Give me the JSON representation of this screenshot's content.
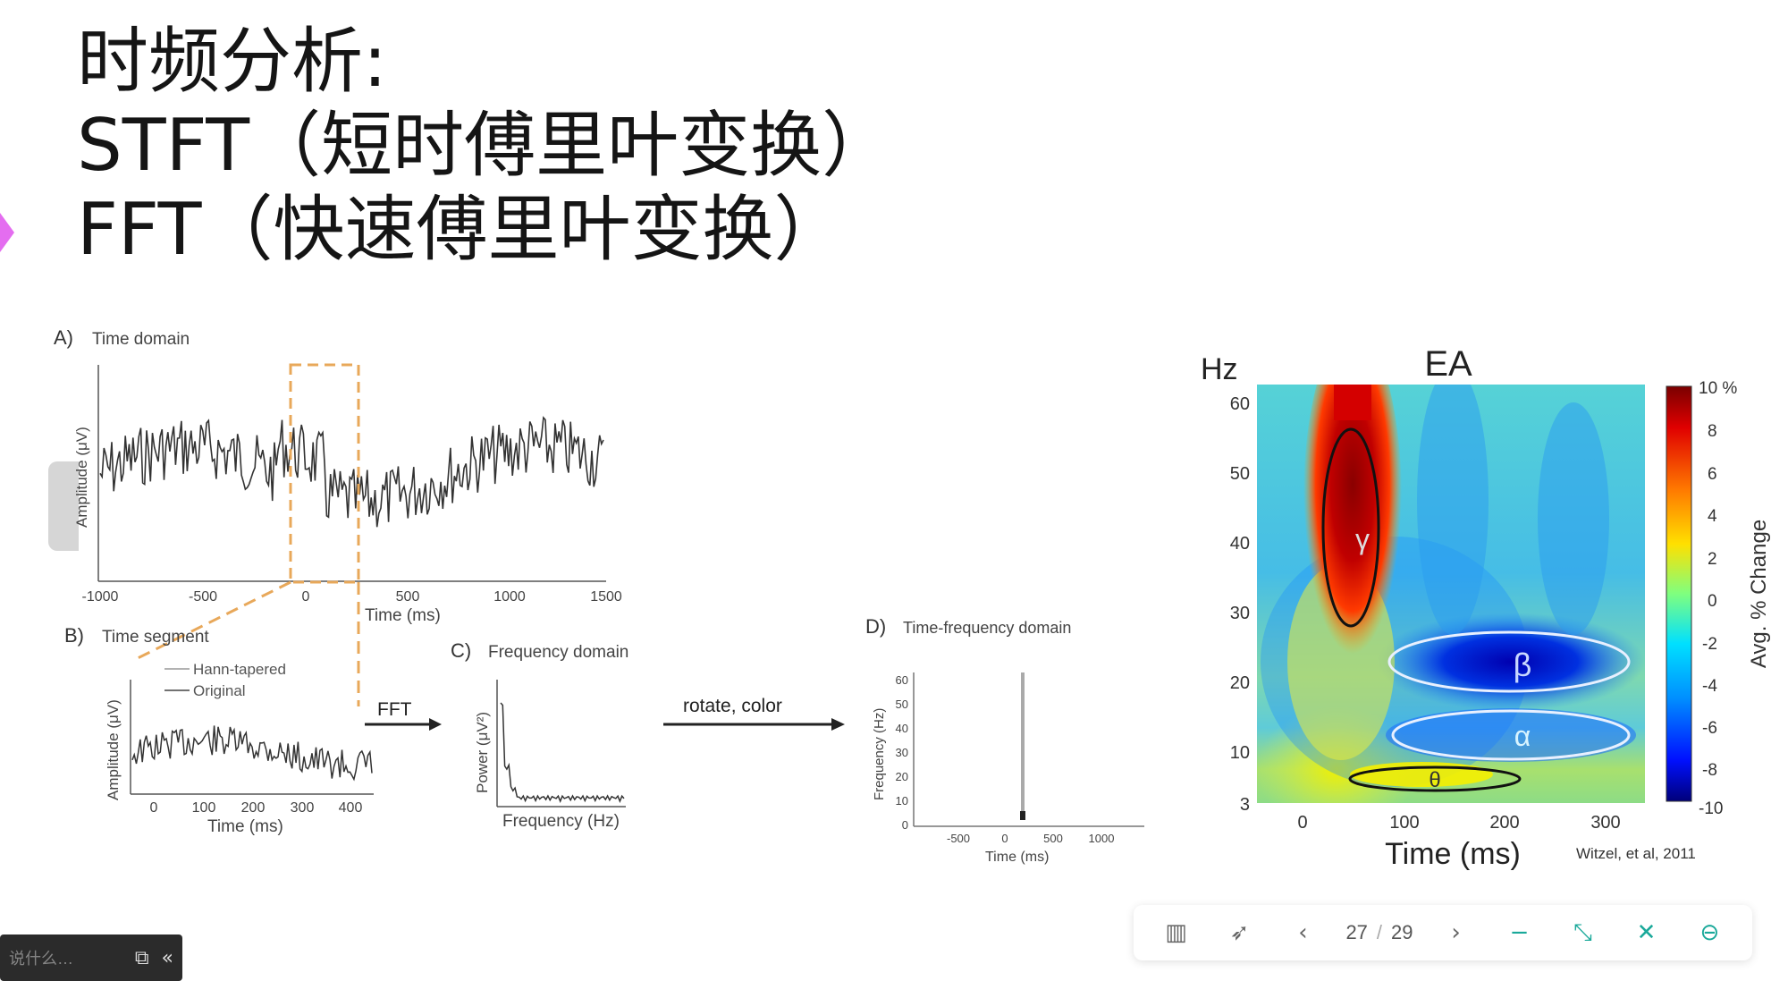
{
  "slide": {
    "title_line1": "时频分析:",
    "title_line2": "STFT（短时傅里叶变换）",
    "title_line3": "FFT（快速傅里叶变换）"
  },
  "figure_left": {
    "panel_a": {
      "letter": "A)",
      "title": "Time domain",
      "ylabel": "Amplitude (μV)",
      "xlabel": "Time (ms)",
      "ticks": [
        "-1000",
        "-500",
        "0",
        "500",
        "1000",
        "1500"
      ]
    },
    "panel_b": {
      "letter": "B)",
      "title": "Time segment",
      "ylabel": "Amplitude (μV)",
      "xlabel": "Time (ms)",
      "legend1": "Hann-tapered",
      "legend2": "Original",
      "ticks": [
        "0",
        "100",
        "200",
        "300",
        "400"
      ]
    },
    "arrow_fft": "FFT",
    "panel_c": {
      "letter": "C)",
      "title": "Frequency domain",
      "ylabel": "Power (μV²)",
      "xlabel": "Frequency (Hz)"
    },
    "arrow_rotate": "rotate, color",
    "panel_d": {
      "letter": "D)",
      "title": "Time-frequency domain",
      "ylabel": "Frequency (Hz)",
      "xlabel": "Time (ms)",
      "yticks": [
        "0",
        "10",
        "20",
        "30",
        "40",
        "50",
        "60"
      ],
      "xticks": [
        "-500",
        "0",
        "500",
        "1000"
      ]
    }
  },
  "figure_right": {
    "title": "EA",
    "y_unit": "Hz",
    "yticks": [
      "60",
      "50",
      "40",
      "30",
      "20",
      "10",
      "3"
    ],
    "xticks": [
      "0",
      "100",
      "200",
      "300"
    ],
    "xlabel": "Time (ms)",
    "colorbar_ticks": [
      "10 %",
      "8",
      "6",
      "4",
      "2",
      "0",
      "-2",
      "-4",
      "-6",
      "-8",
      "-10"
    ],
    "colorbar_label": "Avg. % Change",
    "bands": {
      "gamma": "γ",
      "beta": "β",
      "alpha": "α",
      "theta": "θ"
    },
    "credit": "Witzel, et al, 2011"
  },
  "bottom_left": {
    "hint": "说什么…",
    "icons": [
      "cast-icon",
      "collapse-icon"
    ]
  },
  "toolbar": {
    "current_page": "27",
    "total_pages": "29",
    "sep": "/"
  }
}
